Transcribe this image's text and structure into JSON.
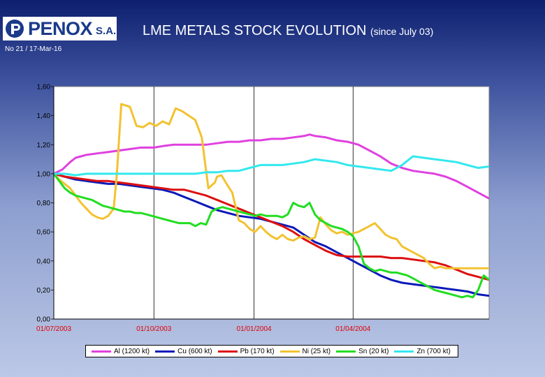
{
  "header": {
    "logo_text": "PENOX",
    "logo_suffix": "S.A.",
    "title": "LME METALS STOCK EVOLUTION",
    "title_suffix": "(since July 03)",
    "issue": "No 21 / 17-Mar-16"
  },
  "colors": {
    "Al": "#e040e0",
    "Cu": "#0a1ab8",
    "Pb": "#dd1010",
    "Ni": "#f2c230",
    "Sn": "#22dd22",
    "Zn": "#33e8ee"
  },
  "chart_data": {
    "type": "line",
    "title": "LME METALS STOCK EVOLUTION",
    "xlabel": "",
    "ylabel": "",
    "ylim": [
      0,
      1.6
    ],
    "yticks": [
      "0,00",
      "0,20",
      "0,40",
      "0,60",
      "0,80",
      "1,00",
      "1,20",
      "1,40",
      "1,60"
    ],
    "xticks": [
      "01/07/2003",
      "01/10/2003",
      "01/01/2004",
      "01/04/2004"
    ],
    "xlim_days": [
      0,
      400
    ],
    "grid": "vertical",
    "legend_position": "bottom",
    "series": [
      {
        "name": "Al (1200 kt)",
        "key": "Al",
        "x": [
          0,
          8,
          15,
          20,
          30,
          40,
          50,
          60,
          70,
          80,
          92,
          100,
          110,
          120,
          130,
          140,
          150,
          160,
          170,
          180,
          190,
          200,
          210,
          220,
          230,
          235,
          240,
          250,
          260,
          270,
          280,
          290,
          300,
          310,
          320,
          330,
          340,
          350,
          360,
          370,
          380,
          390,
          400
        ],
        "y": [
          1.0,
          1.03,
          1.08,
          1.11,
          1.13,
          1.14,
          1.15,
          1.16,
          1.17,
          1.18,
          1.18,
          1.19,
          1.2,
          1.2,
          1.2,
          1.2,
          1.21,
          1.22,
          1.22,
          1.23,
          1.23,
          1.24,
          1.24,
          1.25,
          1.26,
          1.27,
          1.26,
          1.25,
          1.23,
          1.22,
          1.2,
          1.16,
          1.12,
          1.07,
          1.04,
          1.02,
          1.01,
          1.0,
          0.98,
          0.95,
          0.91,
          0.87,
          0.83
        ]
      },
      {
        "name": "Cu (600 kt)",
        "key": "Cu",
        "x": [
          0,
          10,
          20,
          30,
          40,
          50,
          60,
          70,
          80,
          90,
          100,
          110,
          120,
          130,
          140,
          150,
          160,
          170,
          180,
          190,
          200,
          210,
          220,
          230,
          240,
          250,
          260,
          270,
          280,
          290,
          300,
          310,
          320,
          330,
          340,
          350,
          360,
          370,
          380,
          390,
          400
        ],
        "y": [
          1.0,
          0.98,
          0.96,
          0.95,
          0.94,
          0.93,
          0.93,
          0.92,
          0.91,
          0.9,
          0.89,
          0.87,
          0.84,
          0.81,
          0.78,
          0.75,
          0.73,
          0.71,
          0.7,
          0.69,
          0.67,
          0.65,
          0.63,
          0.58,
          0.53,
          0.5,
          0.46,
          0.42,
          0.38,
          0.34,
          0.3,
          0.27,
          0.25,
          0.24,
          0.23,
          0.22,
          0.21,
          0.2,
          0.19,
          0.17,
          0.16
        ]
      },
      {
        "name": "Pb (170 kt)",
        "key": "Pb",
        "x": [
          0,
          10,
          20,
          30,
          40,
          50,
          60,
          70,
          80,
          90,
          100,
          110,
          120,
          130,
          140,
          150,
          160,
          170,
          180,
          190,
          200,
          210,
          220,
          230,
          240,
          250,
          260,
          270,
          280,
          290,
          300,
          310,
          320,
          330,
          340,
          350,
          360,
          370,
          380,
          390,
          400
        ],
        "y": [
          1.0,
          0.98,
          0.97,
          0.96,
          0.95,
          0.95,
          0.94,
          0.93,
          0.92,
          0.91,
          0.9,
          0.89,
          0.89,
          0.87,
          0.85,
          0.82,
          0.79,
          0.76,
          0.73,
          0.7,
          0.67,
          0.64,
          0.6,
          0.55,
          0.51,
          0.47,
          0.44,
          0.43,
          0.43,
          0.43,
          0.43,
          0.42,
          0.42,
          0.41,
          0.4,
          0.39,
          0.37,
          0.34,
          0.31,
          0.29,
          0.27
        ]
      },
      {
        "name": "Ni (25 kt)",
        "key": "Ni",
        "x": [
          0,
          5,
          10,
          15,
          20,
          25,
          30,
          35,
          40,
          45,
          50,
          55,
          58,
          62,
          66,
          70,
          76,
          82,
          88,
          94,
          100,
          106,
          112,
          118,
          124,
          130,
          136,
          142,
          148,
          150,
          154,
          158,
          164,
          170,
          175,
          180,
          185,
          190,
          195,
          200,
          205,
          210,
          215,
          220,
          225,
          230,
          235,
          240,
          245,
          250,
          255,
          260,
          265,
          270,
          275,
          280,
          285,
          290,
          295,
          300,
          305,
          310,
          315,
          320,
          325,
          330,
          335,
          340,
          345,
          350,
          355,
          360,
          365,
          370,
          375,
          380,
          385,
          390,
          395,
          400
        ],
        "y": [
          1.0,
          0.96,
          0.93,
          0.9,
          0.85,
          0.8,
          0.76,
          0.72,
          0.7,
          0.69,
          0.71,
          0.76,
          1.0,
          1.48,
          1.47,
          1.46,
          1.33,
          1.32,
          1.35,
          1.33,
          1.36,
          1.34,
          1.45,
          1.43,
          1.4,
          1.37,
          1.25,
          0.9,
          0.94,
          0.98,
          0.99,
          0.94,
          0.87,
          0.68,
          0.66,
          0.62,
          0.6,
          0.64,
          0.6,
          0.57,
          0.55,
          0.58,
          0.55,
          0.54,
          0.56,
          0.57,
          0.55,
          0.56,
          0.7,
          0.65,
          0.61,
          0.59,
          0.6,
          0.58,
          0.59,
          0.6,
          0.62,
          0.64,
          0.66,
          0.62,
          0.58,
          0.56,
          0.55,
          0.5,
          0.48,
          0.46,
          0.44,
          0.42,
          0.38,
          0.35,
          0.36,
          0.35,
          0.35,
          0.35,
          0.35,
          0.35,
          0.35,
          0.35,
          0.35,
          0.35
        ]
      },
      {
        "name": "Sn (20 kt)",
        "key": "Sn",
        "x": [
          0,
          5,
          10,
          15,
          20,
          25,
          30,
          35,
          40,
          45,
          50,
          55,
          60,
          65,
          70,
          75,
          80,
          85,
          90,
          95,
          100,
          105,
          110,
          115,
          120,
          125,
          130,
          135,
          140,
          145,
          150,
          155,
          160,
          165,
          170,
          175,
          180,
          185,
          190,
          195,
          200,
          205,
          210,
          215,
          220,
          225,
          230,
          235,
          240,
          245,
          250,
          255,
          260,
          265,
          270,
          275,
          280,
          285,
          290,
          295,
          300,
          305,
          310,
          315,
          320,
          325,
          330,
          335,
          340,
          345,
          350,
          355,
          360,
          365,
          370,
          375,
          380,
          385,
          390,
          395,
          400
        ],
        "y": [
          1.0,
          0.95,
          0.9,
          0.87,
          0.85,
          0.84,
          0.83,
          0.82,
          0.8,
          0.78,
          0.77,
          0.76,
          0.75,
          0.74,
          0.74,
          0.73,
          0.73,
          0.72,
          0.71,
          0.7,
          0.69,
          0.68,
          0.67,
          0.66,
          0.66,
          0.66,
          0.64,
          0.66,
          0.65,
          0.74,
          0.76,
          0.77,
          0.76,
          0.75,
          0.74,
          0.73,
          0.72,
          0.71,
          0.72,
          0.71,
          0.71,
          0.71,
          0.7,
          0.72,
          0.8,
          0.78,
          0.77,
          0.8,
          0.72,
          0.68,
          0.66,
          0.64,
          0.63,
          0.62,
          0.6,
          0.57,
          0.5,
          0.38,
          0.35,
          0.33,
          0.34,
          0.33,
          0.32,
          0.32,
          0.31,
          0.3,
          0.28,
          0.26,
          0.24,
          0.22,
          0.2,
          0.19,
          0.18,
          0.17,
          0.16,
          0.15,
          0.16,
          0.15,
          0.2,
          0.3,
          0.27
        ]
      },
      {
        "name": "Zn (700 kt)",
        "key": "Zn",
        "x": [
          0,
          10,
          20,
          30,
          40,
          50,
          60,
          70,
          80,
          90,
          100,
          110,
          120,
          130,
          140,
          150,
          160,
          170,
          180,
          190,
          200,
          210,
          220,
          230,
          240,
          250,
          260,
          270,
          280,
          290,
          300,
          310,
          320,
          330,
          340,
          350,
          360,
          370,
          380,
          390,
          400
        ],
        "y": [
          1.0,
          1.0,
          0.99,
          1.0,
          1.0,
          1.0,
          1.0,
          1.0,
          1.0,
          1.0,
          1.0,
          1.0,
          1.0,
          1.0,
          1.01,
          1.01,
          1.02,
          1.02,
          1.04,
          1.06,
          1.06,
          1.06,
          1.07,
          1.08,
          1.1,
          1.09,
          1.08,
          1.06,
          1.05,
          1.04,
          1.03,
          1.02,
          1.06,
          1.12,
          1.11,
          1.1,
          1.09,
          1.08,
          1.06,
          1.04,
          1.05
        ]
      }
    ]
  }
}
